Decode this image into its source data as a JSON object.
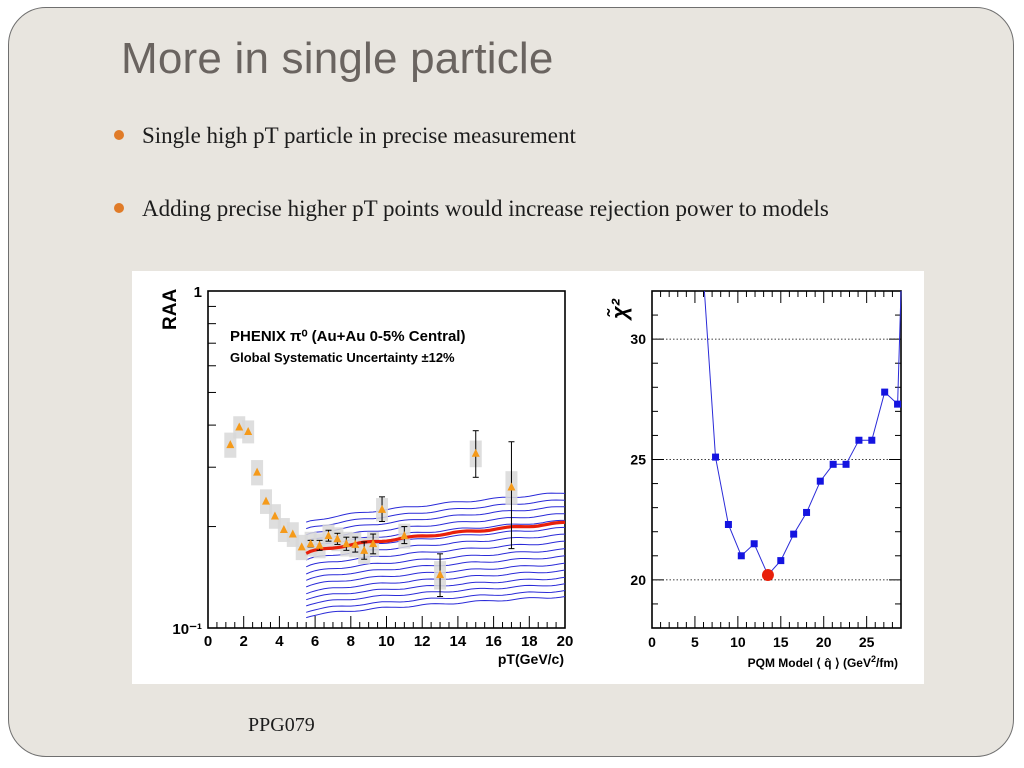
{
  "slide": {
    "title": "More in single particle",
    "bullets": [
      "Single high pT particle in precise measurement",
      "Adding precise higher pT points would increase rejection power to models"
    ],
    "footer": "PPG079"
  },
  "colors": {
    "slide_background": "#e8e5df",
    "title": "#6a6460",
    "bullet_dot": "#e07b28",
    "data_marker": "#f59a1a",
    "model_curves": "#2a2ad8",
    "best_fit_curve": "#e8200a",
    "chi2_markers": "#1414e0",
    "chi2_minimum": "#e8200a"
  },
  "chart_data": [
    {
      "type": "line",
      "annotation_line1": "PHENIX π⁰ (Au+Au 0-5% Central)",
      "annotation_line2": "Global Systematic Uncertainty ±12%",
      "ylabel": "RAA",
      "xlabel": "pT(GeV/c)",
      "ylim": [
        0.1,
        1
      ],
      "y_scale": "log",
      "xlim": [
        0,
        20
      ],
      "x_ticks": [
        "0",
        "2",
        "4",
        "6",
        "8",
        "10",
        "12",
        "14",
        "16",
        "18",
        "20"
      ],
      "y_tick_labels": [
        "1",
        "10⁻¹"
      ],
      "data_points": [
        {
          "x": 1.25,
          "y": 0.35,
          "err_low": 0,
          "err_high": 0,
          "sys": 0.03
        },
        {
          "x": 1.75,
          "y": 0.395,
          "err_low": 0,
          "err_high": 0,
          "sys": 0.03
        },
        {
          "x": 2.25,
          "y": 0.383,
          "err_low": 0,
          "err_high": 0,
          "sys": 0.03
        },
        {
          "x": 2.75,
          "y": 0.29,
          "err_low": 0,
          "err_high": 0,
          "sys": 0.025
        },
        {
          "x": 3.25,
          "y": 0.238,
          "err_low": 0,
          "err_high": 0,
          "sys": 0.02
        },
        {
          "x": 3.75,
          "y": 0.215,
          "err_low": 0,
          "err_high": 0,
          "sys": 0.018
        },
        {
          "x": 4.25,
          "y": 0.196,
          "err_low": 0,
          "err_high": 0,
          "sys": 0.016
        },
        {
          "x": 4.75,
          "y": 0.19,
          "err_low": 0,
          "err_high": 0,
          "sys": 0.016
        },
        {
          "x": 5.25,
          "y": 0.174,
          "err_low": 0,
          "err_high": 0,
          "sys": 0.015
        },
        {
          "x": 5.75,
          "y": 0.178,
          "err_low": 0.004,
          "err_high": 0.004,
          "sys": 0.015
        },
        {
          "x": 6.25,
          "y": 0.176,
          "err_low": 0.006,
          "err_high": 0.006,
          "sys": 0.015
        },
        {
          "x": 6.75,
          "y": 0.188,
          "err_low": 0.007,
          "err_high": 0.007,
          "sys": 0.015
        },
        {
          "x": 7.25,
          "y": 0.184,
          "err_low": 0.007,
          "err_high": 0.007,
          "sys": 0.015
        },
        {
          "x": 7.75,
          "y": 0.178,
          "err_low": 0.008,
          "err_high": 0.008,
          "sys": 0.015
        },
        {
          "x": 8.25,
          "y": 0.177,
          "err_low": 0.009,
          "err_high": 0.009,
          "sys": 0.015
        },
        {
          "x": 8.75,
          "y": 0.17,
          "err_low": 0.01,
          "err_high": 0.01,
          "sys": 0.015
        },
        {
          "x": 9.25,
          "y": 0.178,
          "err_low": 0.012,
          "err_high": 0.012,
          "sys": 0.015
        },
        {
          "x": 9.75,
          "y": 0.225,
          "err_low": 0.018,
          "err_high": 0.02,
          "sys": 0.018
        },
        {
          "x": 11.0,
          "y": 0.188,
          "err_low": 0.01,
          "err_high": 0.012,
          "sys": 0.016
        },
        {
          "x": 13.0,
          "y": 0.144,
          "err_low": 0.02,
          "err_high": 0.022,
          "sys": 0.014
        },
        {
          "x": 15.0,
          "y": 0.33,
          "err_low": 0.05,
          "err_high": 0.055,
          "sys": 0.03
        },
        {
          "x": 17.0,
          "y": 0.262,
          "err_low": 0.09,
          "err_high": 0.095,
          "sys": 0.03
        }
      ],
      "model_curves": [
        {
          "y_at_5_5": 0.205,
          "y_at_20": 0.252
        },
        {
          "y_at_5_5": 0.196,
          "y_at_20": 0.24
        },
        {
          "y_at_5_5": 0.188,
          "y_at_20": 0.229
        },
        {
          "y_at_5_5": 0.18,
          "y_at_20": 0.218
        },
        {
          "y_at_5_5": 0.173,
          "y_at_20": 0.208
        },
        {
          "y_at_5_5": 0.166,
          "y_at_20": 0.198
        },
        {
          "y_at_5_5": 0.159,
          "y_at_20": 0.189
        },
        {
          "y_at_5_5": 0.152,
          "y_at_20": 0.18
        },
        {
          "y_at_5_5": 0.145,
          "y_at_20": 0.171
        },
        {
          "y_at_5_5": 0.139,
          "y_at_20": 0.163
        },
        {
          "y_at_5_5": 0.133,
          "y_at_20": 0.155
        },
        {
          "y_at_5_5": 0.127,
          "y_at_20": 0.148
        },
        {
          "y_at_5_5": 0.122,
          "y_at_20": 0.141
        },
        {
          "y_at_5_5": 0.117,
          "y_at_20": 0.135
        },
        {
          "y_at_5_5": 0.112,
          "y_at_20": 0.129
        },
        {
          "y_at_5_5": 0.108,
          "y_at_20": 0.124
        }
      ],
      "best_fit_curve": {
        "y_at_5_5": 0.166,
        "y_at_20": 0.205
      }
    },
    {
      "type": "line",
      "ylabel": "χ̃²",
      "xlabel_prefix": "PQM Model ⟨ q̂ ⟩ (GeV",
      "xlabel_sup": "2",
      "xlabel_suffix": "/fm)",
      "xlim": [
        0,
        29
      ],
      "ylim": [
        18,
        32
      ],
      "x_ticks": [
        "0",
        "5",
        "10",
        "15",
        "20",
        "25"
      ],
      "y_ticks": [
        "20",
        "25",
        "30"
      ],
      "grid": "horizontal dotted at 20, 25, 30",
      "curve": [
        {
          "x": 6.1,
          "y": 32.0
        },
        {
          "x": 7.4,
          "y": 25.1
        },
        {
          "x": 8.9,
          "y": 22.3
        },
        {
          "x": 10.4,
          "y": 21.0
        },
        {
          "x": 11.9,
          "y": 21.5
        },
        {
          "x": 13.5,
          "y": 20.2
        },
        {
          "x": 15.0,
          "y": 20.8
        },
        {
          "x": 16.5,
          "y": 21.9
        },
        {
          "x": 18.0,
          "y": 22.8
        },
        {
          "x": 19.6,
          "y": 24.1
        },
        {
          "x": 21.1,
          "y": 24.8
        },
        {
          "x": 22.6,
          "y": 24.8
        },
        {
          "x": 24.1,
          "y": 25.8
        },
        {
          "x": 25.6,
          "y": 25.8
        },
        {
          "x": 27.1,
          "y": 27.8
        },
        {
          "x": 28.6,
          "y": 27.3
        },
        {
          "x": 29.0,
          "y": 32.0
        }
      ],
      "markers": [
        {
          "x": 7.4,
          "y": 25.1
        },
        {
          "x": 8.9,
          "y": 22.3
        },
        {
          "x": 10.4,
          "y": 21.0
        },
        {
          "x": 11.9,
          "y": 21.5
        },
        {
          "x": 15.0,
          "y": 20.8
        },
        {
          "x": 16.5,
          "y": 21.9
        },
        {
          "x": 18.0,
          "y": 22.8
        },
        {
          "x": 19.6,
          "y": 24.1
        },
        {
          "x": 21.1,
          "y": 24.8
        },
        {
          "x": 22.6,
          "y": 24.8
        },
        {
          "x": 24.1,
          "y": 25.8
        },
        {
          "x": 25.6,
          "y": 25.8
        },
        {
          "x": 27.1,
          "y": 27.8
        },
        {
          "x": 28.6,
          "y": 27.3
        }
      ],
      "minimum": {
        "x": 13.5,
        "y": 20.2
      }
    }
  ]
}
